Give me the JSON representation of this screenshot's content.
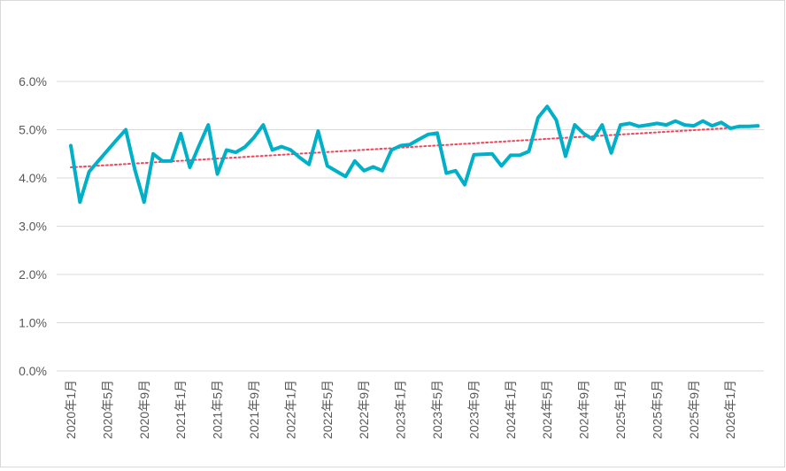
{
  "chart_data": {
    "type": "line",
    "title": "",
    "xlabel": "",
    "ylabel": "",
    "ylim": [
      0,
      6
    ],
    "y_ticks": [
      "0.0%",
      "1.0%",
      "2.0%",
      "3.0%",
      "4.0%",
      "5.0%",
      "6.0%"
    ],
    "x_tick_labels": [
      "2020年1月",
      "2020年5月",
      "2020年9月",
      "2021年1月",
      "2021年5月",
      "2021年9月",
      "2022年1月",
      "2022年5月",
      "2022年9月",
      "2023年1月",
      "2023年5月",
      "2023年9月",
      "2024年1月",
      "2024年5月",
      "2024年9月",
      "2025年1月",
      "2025年5月",
      "2025年9月",
      "2026年1月"
    ],
    "grid": true,
    "legend": "none",
    "series": [
      {
        "values": [
          4.67,
          3.5,
          4.13,
          4.35,
          4.57,
          4.79,
          5.0,
          4.17,
          3.5,
          4.5,
          4.35,
          4.35,
          4.92,
          4.22,
          4.67,
          5.1,
          4.08,
          4.58,
          4.53,
          4.64,
          4.84,
          5.1,
          4.58,
          4.65,
          4.58,
          4.42,
          4.28,
          4.97,
          4.25,
          4.14,
          4.03,
          4.35,
          4.15,
          4.23,
          4.15,
          4.58,
          4.67,
          4.69,
          4.8,
          4.9,
          4.93,
          4.1,
          4.15,
          3.86,
          4.48,
          4.49,
          4.5,
          4.25,
          4.47,
          4.47,
          4.55,
          5.25,
          5.48,
          5.2,
          4.45,
          5.1,
          4.92,
          4.8,
          5.1,
          4.52,
          5.1,
          5.13,
          5.07,
          5.1,
          5.13,
          5.1,
          5.18,
          5.1,
          5.08,
          5.18,
          5.08,
          5.15,
          5.03,
          5.07,
          5.07,
          5.08
        ],
        "color": "#00b0c8"
      }
    ],
    "trendline": {
      "type": "linear",
      "style": "dotted",
      "color": "#f0465a",
      "start_value": 4.22,
      "end_value": 5.07
    }
  }
}
